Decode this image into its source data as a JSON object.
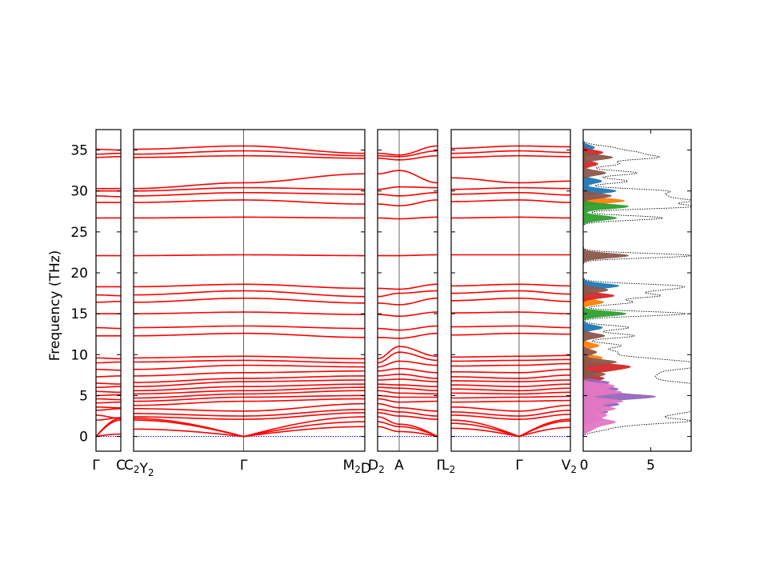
{
  "chart_data": {
    "type": "line",
    "title": "",
    "ylabel": "Frequency (THz)",
    "ylim": [
      -1.8,
      37.5
    ],
    "y_ticks": [
      0,
      5,
      10,
      15,
      20,
      25,
      30,
      35
    ],
    "line_color": "#ff0000",
    "zero_line_color": "#0000cc",
    "panels": [
      {
        "id": "p1",
        "path_labels": [
          "Γ",
          "C"
        ],
        "bands": [
          {
            "a": 0,
            "b": 2.2
          },
          {
            "a": 0,
            "b": 0.3
          },
          {
            "a": 0,
            "b": 2.0
          },
          {
            "a": 2.0,
            "b": 2.3
          },
          {
            "a": 2.6,
            "b": 2.2
          },
          {
            "a": 3.2,
            "b": 3.4
          },
          {
            "a": 3.6,
            "b": 3.5
          },
          {
            "a": 4.1,
            "b": 4.2
          },
          {
            "a": 4.6,
            "b": 4.5
          },
          {
            "a": 5.0,
            "b": 5.1
          },
          {
            "a": 5.5,
            "b": 5.4
          },
          {
            "a": 6.0,
            "b": 6.1
          },
          {
            "a": 6.5,
            "b": 6.4
          },
          {
            "a": 7.3,
            "b": 7.4
          },
          {
            "a": 8.2,
            "b": 8.1
          },
          {
            "a": 9.0,
            "b": 9.1
          },
          {
            "a": 9.6,
            "b": 9.5
          },
          {
            "a": 12.3,
            "b": 12.3
          },
          {
            "a": 13.3,
            "b": 13.2
          },
          {
            "a": 15.0,
            "b": 15.0
          },
          {
            "a": 16.4,
            "b": 16.5
          },
          {
            "a": 17.3,
            "b": 17.2
          },
          {
            "a": 18.3,
            "b": 18.3
          },
          {
            "a": 22.1,
            "b": 22.1
          },
          {
            "a": 26.7,
            "b": 26.7
          },
          {
            "a": 28.6,
            "b": 28.6
          },
          {
            "a": 29.4,
            "b": 29.3
          },
          {
            "a": 30.0,
            "b": 30.0
          },
          {
            "a": 30.3,
            "b": 30.3
          },
          {
            "a": 34.1,
            "b": 34.2
          },
          {
            "a": 34.5,
            "b": 34.6
          },
          {
            "a": 35.1,
            "b": 35.0
          }
        ]
      },
      {
        "id": "p2",
        "path_labels": [
          "C2Y2",
          "Γ",
          "M2D"
        ],
        "bands": [
          {
            "a": 2.2,
            "b": 0,
            "c": 2.4
          },
          {
            "a": 0.9,
            "b": 0,
            "c": 1.2
          },
          {
            "a": 2.0,
            "b": 0,
            "c": 1.8
          },
          {
            "a": 2.4,
            "b": 2.1,
            "c": 2.9
          },
          {
            "a": 2.8,
            "b": 2.5,
            "c": 3.3
          },
          {
            "a": 3.4,
            "b": 3.1,
            "c": 4.0
          },
          {
            "a": 3.8,
            "b": 4.3,
            "c": 4.6
          },
          {
            "a": 4.3,
            "b": 4.8,
            "c": 5.0
          },
          {
            "a": 4.7,
            "b": 5.2,
            "c": 5.6
          },
          {
            "a": 5.2,
            "b": 5.6,
            "c": 6.0
          },
          {
            "a": 5.6,
            "b": 6.1,
            "c": 6.4
          },
          {
            "a": 6.1,
            "b": 6.7,
            "c": 6.9
          },
          {
            "a": 6.6,
            "b": 7.1,
            "c": 7.4
          },
          {
            "a": 7.4,
            "b": 7.8,
            "c": 8.0
          },
          {
            "a": 8.2,
            "b": 8.7,
            "c": 8.5
          },
          {
            "a": 9.1,
            "b": 9.3,
            "c": 9.0
          },
          {
            "a": 9.6,
            "b": 9.8,
            "c": 9.5
          },
          {
            "a": 12.3,
            "b": 12.6,
            "c": 12.1
          },
          {
            "a": 13.3,
            "b": 13.5,
            "c": 13.2
          },
          {
            "a": 15.0,
            "b": 15.2,
            "c": 14.9
          },
          {
            "a": 16.4,
            "b": 16.9,
            "c": 16.3
          },
          {
            "a": 17.3,
            "b": 17.8,
            "c": 17.1
          },
          {
            "a": 18.3,
            "b": 18.6,
            "c": 18.1
          },
          {
            "a": 22.1,
            "b": 22.2,
            "c": 22.1
          },
          {
            "a": 26.7,
            "b": 26.8,
            "c": 26.7
          },
          {
            "a": 28.6,
            "b": 28.9,
            "c": 28.4
          },
          {
            "a": 29.4,
            "b": 29.8,
            "c": 29.6
          },
          {
            "a": 30.0,
            "b": 30.4,
            "c": 30.2
          },
          {
            "a": 30.3,
            "b": 31.0,
            "c": 32.1
          },
          {
            "a": 34.1,
            "b": 34.3,
            "c": 34.0
          },
          {
            "a": 34.5,
            "b": 34.9,
            "c": 34.3
          },
          {
            "a": 35.1,
            "b": 35.5,
            "c": 34.6
          }
        ]
      },
      {
        "id": "p3",
        "path_labels": [
          "D2",
          "A",
          "Γ"
        ],
        "bands": [
          {
            "a": 2.4,
            "b": 1.5,
            "c": 0
          },
          {
            "a": 1.2,
            "b": 0.6,
            "c": 0
          },
          {
            "a": 1.8,
            "b": 1.2,
            "c": 0
          },
          {
            "a": 2.9,
            "b": 2.5,
            "c": 2.1
          },
          {
            "a": 3.3,
            "b": 3.0,
            "c": 2.5
          },
          {
            "a": 4.0,
            "b": 3.5,
            "c": 3.1
          },
          {
            "a": 4.6,
            "b": 4.2,
            "c": 4.3
          },
          {
            "a": 5.0,
            "b": 4.8,
            "c": 4.8
          },
          {
            "a": 5.6,
            "b": 5.3,
            "c": 5.2
          },
          {
            "a": 6.0,
            "b": 5.9,
            "c": 5.6
          },
          {
            "a": 6.4,
            "b": 6.3,
            "c": 6.1
          },
          {
            "a": 6.9,
            "b": 7.0,
            "c": 6.7
          },
          {
            "a": 7.4,
            "b": 7.6,
            "c": 7.1
          },
          {
            "a": 8.0,
            "b": 8.3,
            "c": 7.8
          },
          {
            "a": 8.5,
            "b": 9.2,
            "c": 8.7
          },
          {
            "a": 9.0,
            "b": 10.3,
            "c": 9.3
          },
          {
            "a": 9.5,
            "b": 11.0,
            "c": 9.8
          },
          {
            "a": 12.1,
            "b": 12.0,
            "c": 12.6
          },
          {
            "a": 13.2,
            "b": 13.0,
            "c": 13.5
          },
          {
            "a": 14.9,
            "b": 14.7,
            "c": 15.2
          },
          {
            "a": 16.3,
            "b": 16.1,
            "c": 16.9
          },
          {
            "a": 17.1,
            "b": 17.5,
            "c": 17.8
          },
          {
            "a": 18.1,
            "b": 18.0,
            "c": 18.6
          },
          {
            "a": 22.1,
            "b": 22.1,
            "c": 22.2
          },
          {
            "a": 26.7,
            "b": 26.6,
            "c": 26.8
          },
          {
            "a": 28.4,
            "b": 28.2,
            "c": 28.9
          },
          {
            "a": 29.6,
            "b": 29.4,
            "c": 29.8
          },
          {
            "a": 30.2,
            "b": 30.5,
            "c": 30.4
          },
          {
            "a": 32.1,
            "b": 32.5,
            "c": 31.0
          },
          {
            "a": 34.0,
            "b": 33.8,
            "c": 34.3
          },
          {
            "a": 34.3,
            "b": 34.2,
            "c": 34.9
          },
          {
            "a": 34.6,
            "b": 34.4,
            "c": 35.5
          }
        ]
      },
      {
        "id": "p4",
        "path_labels": [
          "L2",
          "Γ",
          "V2"
        ],
        "bands": [
          {
            "a": 2.0,
            "b": 0,
            "c": 2.1
          },
          {
            "a": 1.0,
            "b": 0,
            "c": 1.1
          },
          {
            "a": 1.6,
            "b": 0,
            "c": 1.9
          },
          {
            "a": 2.6,
            "b": 2.1,
            "c": 2.7
          },
          {
            "a": 3.0,
            "b": 2.5,
            "c": 3.2
          },
          {
            "a": 3.6,
            "b": 3.1,
            "c": 3.8
          },
          {
            "a": 4.2,
            "b": 4.3,
            "c": 4.4
          },
          {
            "a": 4.7,
            "b": 4.8,
            "c": 4.9
          },
          {
            "a": 5.3,
            "b": 5.2,
            "c": 5.4
          },
          {
            "a": 5.8,
            "b": 5.6,
            "c": 5.9
          },
          {
            "a": 6.3,
            "b": 6.1,
            "c": 6.4
          },
          {
            "a": 6.8,
            "b": 6.7,
            "c": 6.9
          },
          {
            "a": 7.3,
            "b": 7.1,
            "c": 7.5
          },
          {
            "a": 7.9,
            "b": 7.8,
            "c": 8.2
          },
          {
            "a": 8.6,
            "b": 8.7,
            "c": 8.9
          },
          {
            "a": 9.2,
            "b": 9.3,
            "c": 9.4
          },
          {
            "a": 9.7,
            "b": 9.8,
            "c": 9.9
          },
          {
            "a": 12.4,
            "b": 12.6,
            "c": 12.5
          },
          {
            "a": 13.4,
            "b": 13.5,
            "c": 13.3
          },
          {
            "a": 15.1,
            "b": 15.2,
            "c": 15.0
          },
          {
            "a": 16.6,
            "b": 16.9,
            "c": 16.5
          },
          {
            "a": 17.5,
            "b": 17.8,
            "c": 17.4
          },
          {
            "a": 18.4,
            "b": 18.6,
            "c": 18.4
          },
          {
            "a": 22.2,
            "b": 22.2,
            "c": 22.2
          },
          {
            "a": 26.7,
            "b": 26.8,
            "c": 26.7
          },
          {
            "a": 28.7,
            "b": 28.9,
            "c": 28.6
          },
          {
            "a": 29.6,
            "b": 29.8,
            "c": 29.5
          },
          {
            "a": 30.2,
            "b": 30.4,
            "c": 30.3
          },
          {
            "a": 31.6,
            "b": 31.0,
            "c": 31.2
          },
          {
            "a": 34.1,
            "b": 34.3,
            "c": 34.2
          },
          {
            "a": 34.6,
            "b": 34.9,
            "c": 34.7
          },
          {
            "a": 35.2,
            "b": 35.5,
            "c": 35.4
          }
        ]
      }
    ],
    "dos": {
      "xlim": [
        0,
        8
      ],
      "x_ticks": [
        0,
        5
      ],
      "total_color": "#000000",
      "series_colors": [
        "#1f77b4",
        "#ff7f0e",
        "#2ca02c",
        "#d62728",
        "#9467bd",
        "#8c564b",
        "#e377c2"
      ],
      "peaks": [
        {
          "f": 0.8,
          "t": 1.2,
          "c": 6
        },
        {
          "f": 1.3,
          "t": 2.0,
          "c": 6
        },
        {
          "f": 1.8,
          "t": 5.2,
          "c": 6
        },
        {
          "f": 2.1,
          "t": 3.5,
          "c": 4
        },
        {
          "f": 2.6,
          "t": 4.0,
          "c": 6
        },
        {
          "f": 3.0,
          "t": 4.3,
          "c": 4
        },
        {
          "f": 3.4,
          "t": 5.6,
          "c": 6
        },
        {
          "f": 3.9,
          "t": 6.2,
          "c": 4
        },
        {
          "f": 4.3,
          "t": 7.0,
          "c": 6
        },
        {
          "f": 4.7,
          "t": 6.8,
          "c": 4
        },
        {
          "f": 5.0,
          "t": 7.9,
          "c": 4
        },
        {
          "f": 5.4,
          "t": 6.7,
          "c": 6
        },
        {
          "f": 5.8,
          "t": 6.0,
          "c": 4
        },
        {
          "f": 6.2,
          "t": 5.4,
          "c": 6
        },
        {
          "f": 6.6,
          "t": 4.5,
          "c": 4
        },
        {
          "f": 7.1,
          "t": 3.7,
          "c": 3
        },
        {
          "f": 7.6,
          "t": 3.9,
          "c": 5
        },
        {
          "f": 8.1,
          "t": 4.2,
          "c": 3
        },
        {
          "f": 8.6,
          "t": 7.3,
          "c": 3
        },
        {
          "f": 9.1,
          "t": 5.9,
          "c": 5
        },
        {
          "f": 9.6,
          "t": 3.4,
          "c": 1
        },
        {
          "f": 10.3,
          "t": 2.4,
          "c": 5
        },
        {
          "f": 11.1,
          "t": 2.8,
          "c": 1
        },
        {
          "f": 12.3,
          "t": 3.8,
          "c": 5
        },
        {
          "f": 13.3,
          "t": 3.4,
          "c": 0
        },
        {
          "f": 15.0,
          "t": 7.6,
          "c": 2
        },
        {
          "f": 16.4,
          "t": 3.6,
          "c": 1
        },
        {
          "f": 17.2,
          "t": 5.5,
          "c": 3
        },
        {
          "f": 17.9,
          "t": 4.4,
          "c": 5
        },
        {
          "f": 18.4,
          "t": 6.3,
          "c": 0
        },
        {
          "f": 22.1,
          "t": 8.0,
          "c": 5
        },
        {
          "f": 26.7,
          "t": 5.9,
          "c": 2
        },
        {
          "f": 28.1,
          "t": 8.0,
          "c": 2
        },
        {
          "f": 28.8,
          "t": 7.3,
          "c": 1
        },
        {
          "f": 29.4,
          "t": 5.0,
          "c": 5
        },
        {
          "f": 30.0,
          "t": 5.8,
          "c": 0
        },
        {
          "f": 31.2,
          "t": 3.3,
          "c": 0
        },
        {
          "f": 32.2,
          "t": 4.0,
          "c": 5
        },
        {
          "f": 33.3,
          "t": 2.6,
          "c": 3
        },
        {
          "f": 34.1,
          "t": 5.2,
          "c": 5
        },
        {
          "f": 34.7,
          "t": 3.5,
          "c": 3
        },
        {
          "f": 35.3,
          "t": 2.0,
          "c": 0
        }
      ]
    }
  }
}
